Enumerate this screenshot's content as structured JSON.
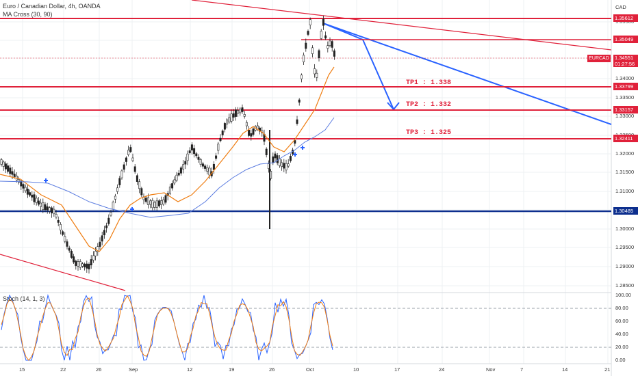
{
  "header": {
    "symbol_title": "Euro / Canadian Dollar, 4h, OANDA",
    "indicator": "MA Cross (30, 90)",
    "oscillator": "Stoch (14, 1, 3)"
  },
  "currency": "CAD",
  "ticker_tag": "EURCAD",
  "last_price": "1.34551",
  "countdown": "01:27:56",
  "price_levels": [
    "1.35612",
    "1.35049",
    "1.33799",
    "1.33157",
    "1.32411",
    "1.30485"
  ],
  "y_axis_ticks": [
    "1.35500",
    "1.35000",
    "1.34500",
    "1.34000",
    "1.33500",
    "1.33000",
    "1.32500",
    "1.32000",
    "1.31500",
    "1.31000",
    "1.30500",
    "1.30000",
    "1.29500",
    "1.29000",
    "1.28500"
  ],
  "stoch_ticks": [
    "100.00",
    "80.00",
    "60.00",
    "40.00",
    "20.00",
    "0.00"
  ],
  "x_axis_ticks": [
    "15",
    "22",
    "26",
    "Sep",
    "12",
    "19",
    "26",
    "Oct",
    "10",
    "17",
    "24",
    "Nov",
    "7",
    "14",
    "21"
  ],
  "targets": [
    "TP1 : 1.338",
    "TP2 : 1.332",
    "TP3 : 1.325"
  ],
  "colors": {
    "red": "#e0213a",
    "blue": "#2962ff",
    "navy": "#0d2f8e",
    "orange": "#ef7d11",
    "ma_blue": "#5c7de0",
    "up": "#26a69a",
    "candle": "#222222"
  }
}
